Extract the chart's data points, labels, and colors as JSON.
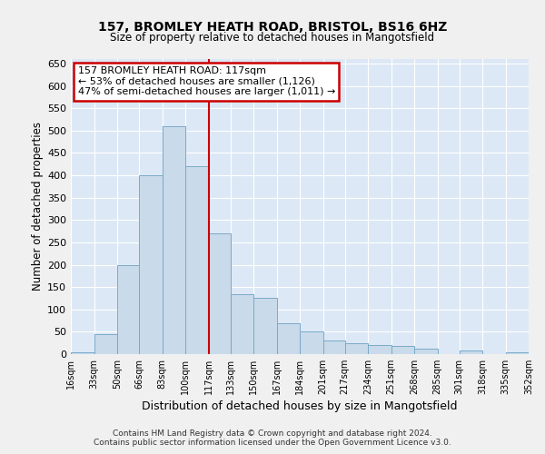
{
  "title": "157, BROMLEY HEATH ROAD, BRISTOL, BS16 6HZ",
  "subtitle": "Size of property relative to detached houses in Mangotsfield",
  "xlabel": "Distribution of detached houses by size in Mangotsfield",
  "ylabel": "Number of detached properties",
  "bar_color": "#c9daea",
  "bar_edge_color": "#7aaac8",
  "marker_line_color": "#cc0000",
  "marker_value": 117,
  "annotation_text": "157 BROMLEY HEATH ROAD: 117sqm\n← 53% of detached houses are smaller (1,126)\n47% of semi-detached houses are larger (1,011) →",
  "annotation_box_color": "#ffffff",
  "annotation_box_edge": "#cc0000",
  "fig_bg_color": "#f0f0f0",
  "axes_bg_color": "#dce8f5",
  "grid_color": "#ffffff",
  "bins": [
    16,
    33,
    50,
    66,
    83,
    100,
    117,
    133,
    150,
    167,
    184,
    201,
    217,
    234,
    251,
    268,
    285,
    301,
    318,
    335,
    352
  ],
  "counts": [
    5,
    45,
    200,
    400,
    510,
    420,
    270,
    135,
    125,
    70,
    50,
    30,
    25,
    20,
    18,
    12,
    0,
    8,
    0,
    5
  ],
  "tick_labels": [
    "16sqm",
    "33sqm",
    "50sqm",
    "66sqm",
    "83sqm",
    "100sqm",
    "117sqm",
    "133sqm",
    "150sqm",
    "167sqm",
    "184sqm",
    "201sqm",
    "217sqm",
    "234sqm",
    "251sqm",
    "268sqm",
    "285sqm",
    "301sqm",
    "318sqm",
    "335sqm",
    "352sqm"
  ],
  "ylim": [
    0,
    660
  ],
  "yticks": [
    0,
    50,
    100,
    150,
    200,
    250,
    300,
    350,
    400,
    450,
    500,
    550,
    600,
    650
  ],
  "footer_line1": "Contains HM Land Registry data © Crown copyright and database right 2024.",
  "footer_line2": "Contains public sector information licensed under the Open Government Licence v3.0."
}
